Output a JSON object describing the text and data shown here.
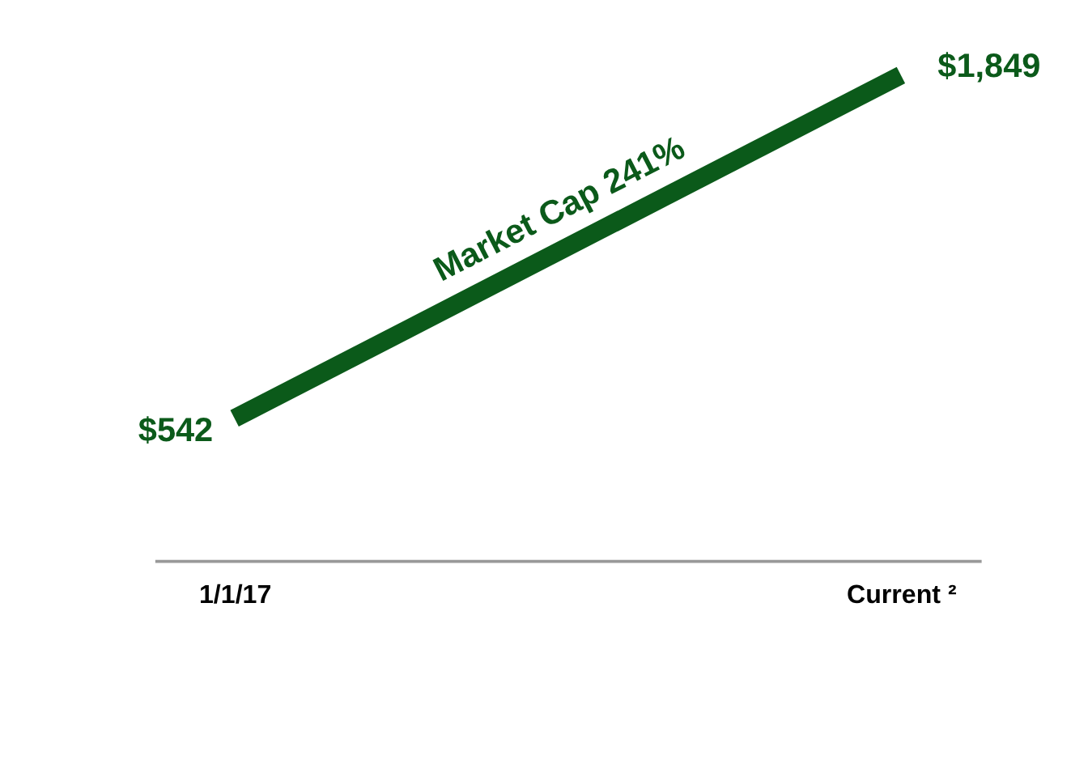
{
  "chart_data": {
    "type": "line",
    "categories": [
      "1/1/17",
      "Current ²"
    ],
    "series": [
      {
        "color": "#0b5a1a",
        "values": [
          542,
          1849
        ],
        "value_labels": [
          "$542",
          "$1,849"
        ]
      }
    ],
    "tick_labels": "x",
    "grid": false,
    "annotations": [
      "Market Cap 241%"
    ]
  }
}
